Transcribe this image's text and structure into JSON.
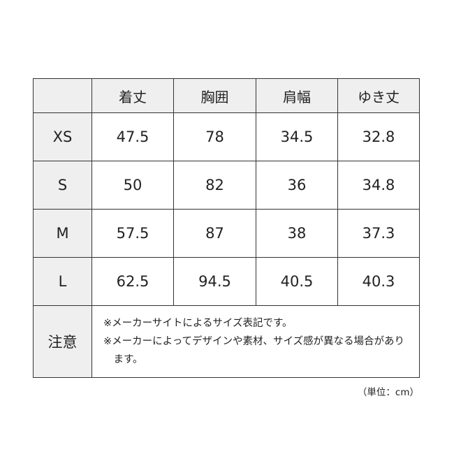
{
  "table": {
    "header": [
      "",
      "着丈",
      "胸囲",
      "肩幅",
      "ゆき丈"
    ],
    "rows": [
      [
        "XS",
        "47.5",
        "78",
        "34.5",
        "32.8"
      ],
      [
        "S",
        "50",
        "82",
        "36",
        "34.8"
      ],
      [
        "M",
        "57.5",
        "87",
        "38",
        "37.3"
      ],
      [
        "L",
        "62.5",
        "94.5",
        "40.5",
        "40.3"
      ]
    ],
    "note_label": "注意",
    "notes": [
      "※メーカーサイトによるサイズ表記です。",
      "※メーカーによってデザインや素材、サイズ感が異なる場合があります。"
    ]
  },
  "unit": "（単位：cm）"
}
